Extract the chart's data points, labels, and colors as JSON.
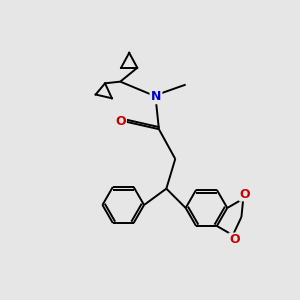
{
  "background_color": "#e6e6e6",
  "bond_color": "#000000",
  "N_color": "#0000cc",
  "O_color": "#cc0000",
  "lw": 1.4,
  "figsize": [
    3.0,
    3.0
  ],
  "dpi": 100,
  "xlim": [
    0,
    10
  ],
  "ylim": [
    0,
    10
  ]
}
